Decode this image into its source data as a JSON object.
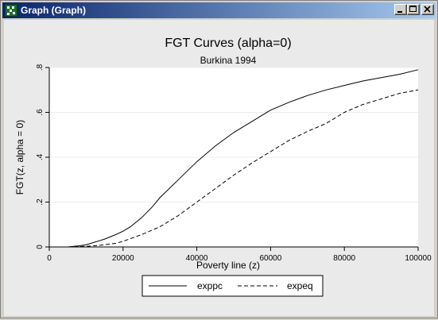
{
  "window": {
    "title": "Graph (Graph)",
    "controls": {
      "minimize": "minimize",
      "maximize": "maximize",
      "close": "close"
    }
  },
  "chart_data": {
    "type": "line",
    "title": "FGT Curves (alpha=0)",
    "subtitle": "Burkina 1994",
    "xlabel": "Poverty line (z)",
    "ylabel": "FGT(z, alpha = 0)",
    "xlim": [
      0,
      100000
    ],
    "ylim": [
      0,
      0.8
    ],
    "xticks": [
      0,
      20000,
      40000,
      60000,
      80000,
      100000
    ],
    "xtick_labels": [
      "0",
      "20000",
      "40000",
      "60000",
      "80000",
      "100000"
    ],
    "yticks": [
      0,
      0.2,
      0.4,
      0.6,
      0.8
    ],
    "ytick_labels": [
      "0",
      ".2",
      ".4",
      ".6",
      ".8"
    ],
    "grid": "horizontal",
    "legend_placement": "bottom",
    "series": [
      {
        "name": "exppc",
        "style": "solid",
        "color": "#000000",
        "x": [
          5000,
          8000,
          10000,
          12000,
          15000,
          18000,
          20000,
          22000,
          25000,
          28000,
          30000,
          35000,
          40000,
          45000,
          50000,
          55000,
          60000,
          65000,
          70000,
          75000,
          80000,
          85000,
          90000,
          95000,
          100000
        ],
        "y": [
          0.0,
          0.005,
          0.01,
          0.02,
          0.035,
          0.055,
          0.07,
          0.09,
          0.13,
          0.18,
          0.22,
          0.3,
          0.38,
          0.45,
          0.51,
          0.56,
          0.61,
          0.645,
          0.675,
          0.7,
          0.72,
          0.74,
          0.755,
          0.77,
          0.79
        ]
      },
      {
        "name": "expeq",
        "style": "dashed",
        "color": "#000000",
        "x": [
          5000,
          10000,
          13000,
          15000,
          18000,
          20000,
          25000,
          30000,
          35000,
          40000,
          45000,
          50000,
          55000,
          60000,
          65000,
          70000,
          75000,
          80000,
          85000,
          90000,
          95000,
          100000
        ],
        "y": [
          0.0,
          0.003,
          0.006,
          0.01,
          0.016,
          0.025,
          0.055,
          0.09,
          0.14,
          0.2,
          0.26,
          0.32,
          0.375,
          0.425,
          0.475,
          0.515,
          0.55,
          0.6,
          0.635,
          0.66,
          0.685,
          0.7
        ]
      }
    ]
  }
}
